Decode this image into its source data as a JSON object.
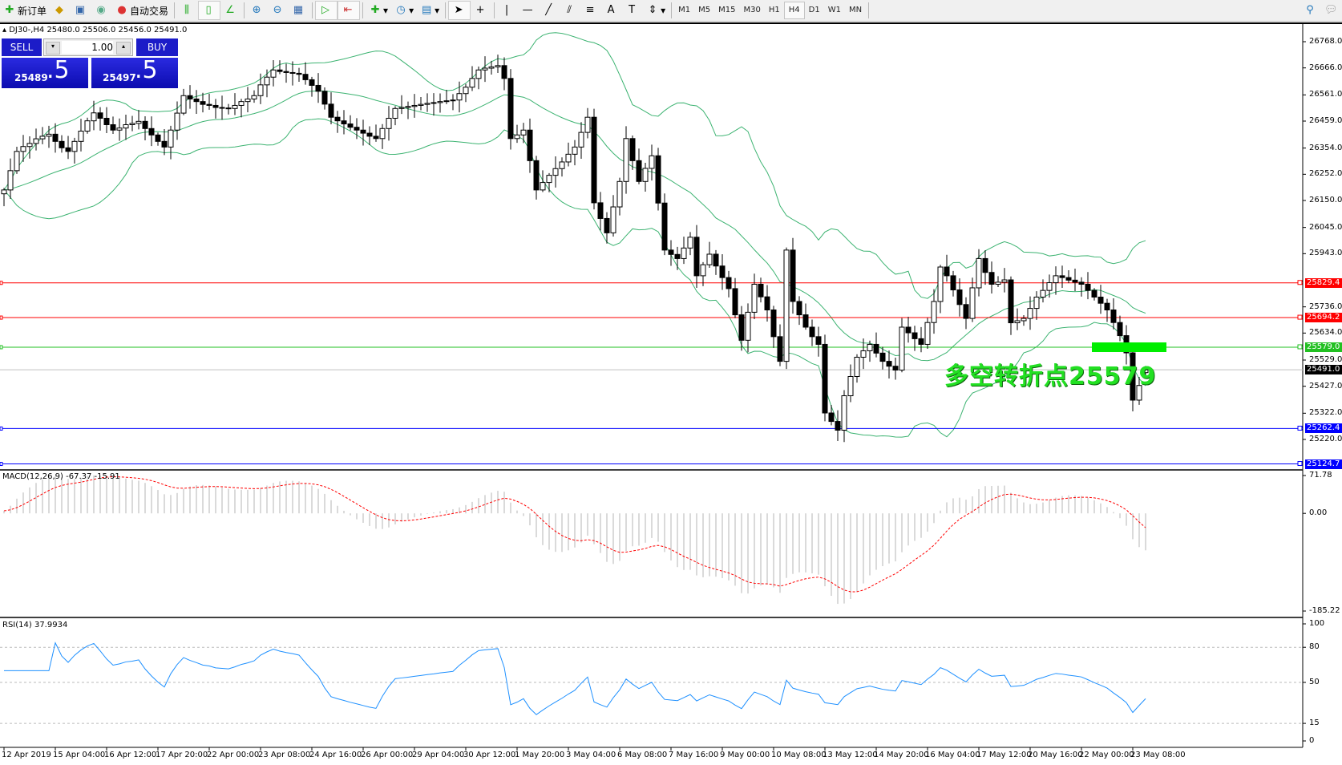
{
  "toolbar": {
    "new_order": "新订单",
    "auto_trading": "自动交易",
    "timeframes": [
      "M1",
      "M5",
      "M15",
      "M30",
      "H1",
      "H4",
      "D1",
      "W1",
      "MN"
    ],
    "active_timeframe": "H4"
  },
  "chart": {
    "symbol_info": "DJ30-,H4  25480.0 25506.0 25456.0 25491.0",
    "one_click": {
      "sell_label": "SELL",
      "buy_label": "BUY",
      "lot": "1.00",
      "sell_price_main": "25489",
      "sell_price_frac": ".5",
      "buy_price_main": "25497",
      "buy_price_frac": ".5"
    },
    "annotation": "多空转折点25579",
    "colors": {
      "bull": "#ffffff",
      "bear": "#000000",
      "bands": "#3cb371",
      "macd_hist": "#c0c0c0",
      "macd_signal": "#ff0000",
      "rsi": "#1e90ff",
      "annotation": "#22e022"
    }
  },
  "chart_data": [
    {
      "type": "candlestick",
      "timeframe": "H4",
      "symbol": "DJ30-",
      "last_bar": {
        "open": 25480.0,
        "high": 25506.0,
        "low": 25456.0,
        "close": 25491.0
      },
      "closes": [
        26191,
        26266,
        26341,
        26360,
        26372,
        26390,
        26400,
        26408,
        26380,
        26355,
        26341,
        26380,
        26420,
        26460,
        26491,
        26470,
        26445,
        26424,
        26432,
        26445,
        26450,
        26458,
        26430,
        26405,
        26380,
        26358,
        26424,
        26490,
        26558,
        26545,
        26535,
        26524,
        26520,
        26512,
        26510,
        26508,
        26520,
        26535,
        26545,
        26558,
        26600,
        26630,
        26658,
        26652,
        26648,
        26645,
        26641,
        26620,
        26598,
        26575,
        26525,
        26474,
        26460,
        26448,
        26435,
        26424,
        26412,
        26400,
        26391,
        26430,
        26470,
        26508,
        26512,
        26516,
        26520,
        26524,
        26528,
        26531,
        26535,
        26538,
        26541,
        26566,
        26591,
        26625,
        26658,
        26665,
        26670,
        26675,
        26625,
        26391,
        26405,
        26424,
        26305,
        26191,
        26220,
        26248,
        26274,
        26300,
        26330,
        26358,
        26415,
        26474,
        26141,
        26080,
        26024,
        26125,
        26224,
        26391,
        26305,
        26224,
        26275,
        26324,
        26140,
        25957,
        25940,
        25924,
        25965,
        26007,
        25857,
        25900,
        25941,
        25895,
        25850,
        25807,
        25705,
        25606,
        25715,
        25824,
        25775,
        25724,
        25620,
        25524,
        25957,
        25757,
        25705,
        25657,
        25620,
        25590,
        25323,
        25290,
        25256,
        25390,
        25465,
        25540,
        25565,
        25590,
        25556,
        25524,
        25505,
        25490,
        25657,
        25635,
        25612,
        25590,
        25675,
        25757,
        25891,
        25857,
        25802,
        25745,
        25691,
        25810,
        25924,
        25870,
        25824,
        25832,
        25841,
        25674,
        25682,
        25691,
        25730,
        25774,
        25800,
        25830,
        25857,
        25850,
        25840,
        25832,
        25824,
        25800,
        25774,
        25750,
        25724,
        25675,
        25624,
        25557,
        25373,
        25430,
        25491
      ],
      "indicators": [
        "Bollinger Bands(20,2)"
      ],
      "price_axis_ticks": [
        "26768.0",
        "26666.0",
        "26561.0",
        "26459.0",
        "26354.0",
        "26252.0",
        "26150.0",
        "26045.0",
        "25943.0",
        "25736.0",
        "25634.0",
        "25529.0",
        "25427.0",
        "25322.0",
        "25220.0"
      ],
      "ylim": [
        25118,
        26800
      ],
      "horizontal_lines": [
        {
          "price": "25829.4",
          "color": "#ff0000"
        },
        {
          "price": "25694.2",
          "color": "#ff0000"
        },
        {
          "price": "25579.0",
          "color": "#22c022"
        },
        {
          "price": "25491.0",
          "color": "#000000",
          "kind": "bid"
        },
        {
          "price": "25262.4",
          "color": "#0000ff"
        },
        {
          "price": "25124.7",
          "color": "#0000ff"
        }
      ],
      "time_axis_ticks": [
        "12 Apr 2019",
        "15 Apr 04:00",
        "16 Apr 12:00",
        "17 Apr 20:00",
        "22 Apr 00:00",
        "23 Apr 08:00",
        "24 Apr 16:00",
        "26 Apr 00:00",
        "29 Apr 04:00",
        "30 Apr 12:00",
        "1 May 20:00",
        "3 May 04:00",
        "6 May 08:00",
        "7 May 16:00",
        "9 May 00:00",
        "10 May 08:00",
        "13 May 12:00",
        "14 May 20:00",
        "16 May 04:00",
        "17 May 12:00",
        "20 May 16:00",
        "22 May 00:00",
        "23 May 08:00"
      ]
    },
    {
      "type": "bar",
      "title": "MACD(12,26,9) -67.37 -15.91",
      "ylim": [
        -185.22,
        71.78
      ],
      "axis_ticks": [
        "71.78",
        "0.00",
        "-185.22"
      ]
    },
    {
      "type": "line",
      "title": "RSI(14) 37.9934",
      "ylim": [
        0,
        100
      ],
      "levels": [
        80,
        50,
        15
      ],
      "axis_ticks": [
        "100",
        "80",
        "50",
        "15",
        "0"
      ]
    }
  ]
}
